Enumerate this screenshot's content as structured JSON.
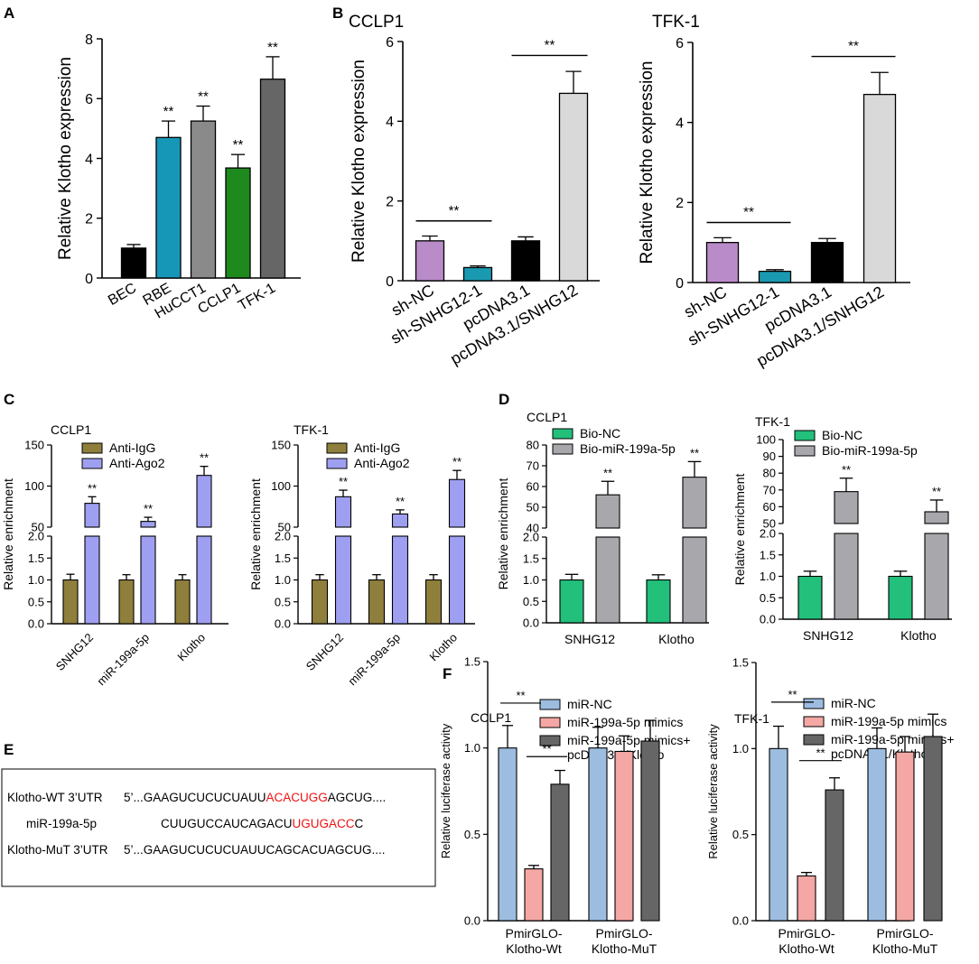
{
  "colors": {
    "black": "#000000",
    "blue_teal": "#1797b8",
    "gray_mid": "#8a8a8a",
    "green": "#1e8a1e",
    "gray_dark": "#666666",
    "purple": "#b98bc9",
    "teal2": "#1a9ab0",
    "light_gray": "#d9d9d9",
    "olive": "#8f7f3c",
    "periwinkle": "#9f9ff2",
    "bio_green": "#22c07a",
    "bio_gray": "#a8a8ac",
    "mirnc_blue": "#9dbde0",
    "mimic_pink": "#f4a7a4",
    "mimic_klotho_gray": "#666666",
    "red_text": "#ee1111"
  },
  "panel_labels": {
    "A": "A",
    "B": "B",
    "C": "C",
    "D": "D",
    "E": "E",
    "F": "F"
  },
  "chart_data": [
    {
      "id": "A",
      "type": "bar",
      "title": "",
      "ylabel": "Relative Klotho expression",
      "ylim": [
        0,
        8
      ],
      "yticks": [
        0,
        2,
        4,
        6,
        8
      ],
      "categories": [
        "BEC",
        "RBE",
        "HuCCT1",
        "CCLP1",
        "TFK-1"
      ],
      "values": [
        1.0,
        4.7,
        5.25,
        3.68,
        6.65
      ],
      "errors": [
        0.12,
        0.55,
        0.5,
        0.45,
        0.75
      ],
      "annotations": [
        "",
        "**",
        "**",
        "**",
        "**"
      ]
    },
    {
      "id": "B1",
      "type": "bar",
      "title": "CCLP1",
      "ylabel": "Relative Klotho expression",
      "ylim": [
        0,
        6
      ],
      "yticks": [
        0,
        2,
        4,
        6
      ],
      "categories": [
        "sh-NC",
        "sh-SNHG12-1",
        "pcDNA3.1",
        "pcDNA3.1/SNHG12"
      ],
      "values": [
        1.0,
        0.33,
        1.0,
        4.7
      ],
      "errors": [
        0.12,
        0.04,
        0.1,
        0.55
      ],
      "significance": [
        {
          "label": "**",
          "from": 0,
          "to": 1,
          "y": 1.5
        },
        {
          "label": "**",
          "from": 2,
          "to": 3,
          "y": 5.65
        }
      ]
    },
    {
      "id": "B2",
      "type": "bar",
      "title": "TFK-1",
      "ylabel": "Relative Klotho expression",
      "ylim": [
        0,
        6
      ],
      "yticks": [
        0,
        2,
        4,
        6
      ],
      "categories": [
        "sh-NC",
        "sh-SNHG12-1",
        "pcDNA3.1",
        "pcDNA3.1/SNHG12"
      ],
      "values": [
        1.0,
        0.28,
        1.0,
        4.7
      ],
      "errors": [
        0.12,
        0.04,
        0.1,
        0.55
      ],
      "significance": [
        {
          "label": "**",
          "from": 0,
          "to": 1,
          "y": 1.5
        },
        {
          "label": "**",
          "from": 2,
          "to": 3,
          "y": 5.65
        }
      ]
    },
    {
      "id": "C1",
      "type": "bar",
      "title": "CCLP1",
      "ylabel": "Relative enrichment",
      "y_break": {
        "lower": [
          0,
          2.0
        ],
        "upper": [
          50,
          150
        ]
      },
      "yticks_lower": [
        "0.0",
        "0.5",
        "1.0",
        "1.5",
        "2.0"
      ],
      "yticks_upper": [
        "50",
        "100",
        "150"
      ],
      "categories": [
        "SNHG12",
        "miR-199a-5p",
        "Klotho"
      ],
      "series": [
        {
          "name": "Anti-IgG",
          "values": [
            1.0,
            1.0,
            1.0
          ],
          "errors": [
            0.13,
            0.12,
            0.12
          ]
        },
        {
          "name": "Anti-Ago2",
          "values": [
            79,
            57,
            113
          ],
          "errors": [
            8,
            5,
            11
          ]
        }
      ],
      "annotations": [
        "**",
        "**",
        "**"
      ]
    },
    {
      "id": "C2",
      "type": "bar",
      "title": "TFK-1",
      "ylabel": "Relative enrichment",
      "y_break": {
        "lower": [
          0,
          2.0
        ],
        "upper": [
          50,
          150
        ]
      },
      "yticks_lower": [
        "0.0",
        "0.5",
        "1.0",
        "1.5",
        "2.0"
      ],
      "yticks_upper": [
        "50",
        "100",
        "150"
      ],
      "categories": [
        "SNHG12",
        "miR-199a-5p",
        "Klotho"
      ],
      "series": [
        {
          "name": "Anti-IgG",
          "values": [
            1.0,
            1.0,
            1.0
          ],
          "errors": [
            0.12,
            0.12,
            0.12
          ]
        },
        {
          "name": "Anti-Ago2",
          "values": [
            87,
            66,
            108
          ],
          "errors": [
            8,
            5,
            11
          ]
        }
      ],
      "annotations": [
        "**",
        "**",
        "**"
      ]
    },
    {
      "id": "D1",
      "type": "bar",
      "title": "CCLP1",
      "ylabel": "Relative enrichment",
      "y_break": {
        "lower": [
          0,
          2.0
        ],
        "upper": [
          40,
          80
        ]
      },
      "yticks_lower": [
        "0.0",
        "0.5",
        "1.0",
        "1.5",
        "2.0"
      ],
      "yticks_upper": [
        "40",
        "50",
        "60",
        "70",
        "80"
      ],
      "categories": [
        "SNHG12",
        "Klotho"
      ],
      "series": [
        {
          "name": "Bio-NC",
          "values": [
            1.0,
            1.0
          ],
          "errors": [
            0.13,
            0.12
          ]
        },
        {
          "name": "Bio-miR-199a-5p",
          "values": [
            56,
            64.5
          ],
          "errors": [
            6.5,
            7.5
          ]
        }
      ],
      "annotations": [
        "**",
        "**"
      ]
    },
    {
      "id": "D2",
      "type": "bar",
      "title": "TFK-1",
      "ylabel": "Relative enrichment",
      "y_break": {
        "lower": [
          0,
          2.0
        ],
        "upper": [
          50,
          100
        ]
      },
      "yticks_lower": [
        "0.0",
        "0.5",
        "1.0",
        "1.5",
        "2.0"
      ],
      "yticks_upper": [
        "50",
        "60",
        "70",
        "80",
        "90",
        "100"
      ],
      "categories": [
        "SNHG12",
        "Klotho"
      ],
      "series": [
        {
          "name": "Bio-NC",
          "values": [
            1.0,
            1.0
          ],
          "errors": [
            0.12,
            0.12
          ]
        },
        {
          "name": "Bio-miR-199a-5p",
          "values": [
            69,
            57
          ],
          "errors": [
            8,
            7
          ]
        }
      ],
      "annotations": [
        "**",
        "**"
      ]
    },
    {
      "id": "F1",
      "type": "bar",
      "title": "CCLP1",
      "ylabel": "Relative luciferase activity",
      "ylim": [
        0,
        1.5
      ],
      "yticks": [
        "0.0",
        "0.5",
        "1.0",
        "1.5"
      ],
      "categories": [
        "PmirGLO-Klotho-Wt",
        "PmirGLO-Klotho-MuT"
      ],
      "category_lines": [
        [
          "PmirGLO-",
          "Klotho-Wt"
        ],
        [
          "PmirGLO-",
          "Klotho-MuT"
        ]
      ],
      "series": [
        {
          "name": "miR-NC",
          "values": [
            1.0,
            1.0
          ],
          "errors": [
            0.13,
            0.12
          ]
        },
        {
          "name": "miR-199a-5p mimics",
          "values": [
            0.3,
            0.98
          ],
          "errors": [
            0.02,
            0.09
          ]
        },
        {
          "name": "miR-199a-5p mimics+ pcDNA3.1/Klotho",
          "values": [
            0.79,
            1.04
          ],
          "errors": [
            0.08,
            0.12
          ]
        }
      ],
      "legend_lines": [
        [
          "miR-NC"
        ],
        [
          "miR-199a-5p mimics"
        ],
        [
          "miR-199a-5p mimics+",
          "pcDNA3.1/Klotho"
        ]
      ],
      "significance": [
        {
          "label": "**",
          "from": [
            0,
            0
          ],
          "to": [
            0,
            1
          ],
          "y": 1.26
        },
        {
          "label": "**",
          "from": [
            0,
            1
          ],
          "to": [
            0,
            2
          ],
          "y": 0.95
        }
      ]
    },
    {
      "id": "F2",
      "type": "bar",
      "title": "TFK-1",
      "ylabel": "Relative luciferase activity",
      "ylim": [
        0,
        1.5
      ],
      "yticks": [
        "0.0",
        "0.5",
        "1.0",
        "1.5"
      ],
      "categories": [
        "PmirGLO-Klotho-Wt",
        "PmirGLO-Klotho-MuT"
      ],
      "category_lines": [
        [
          "PmirGLO-",
          "Klotho-Wt"
        ],
        [
          "PmirGLO-",
          "Klotho-MuT"
        ]
      ],
      "series": [
        {
          "name": "miR-NC",
          "values": [
            1.0,
            1.0
          ],
          "errors": [
            0.13,
            0.12
          ]
        },
        {
          "name": "miR-199a-5p mimics",
          "values": [
            0.26,
            0.98
          ],
          "errors": [
            0.02,
            0.09
          ]
        },
        {
          "name": "miR-199a-5p mimics+ pcDNA3.1/Klotho",
          "values": [
            0.76,
            1.07
          ],
          "errors": [
            0.07,
            0.13
          ]
        }
      ],
      "legend_lines": [
        [
          "miR-NC"
        ],
        [
          "miR-199a-5p mimics"
        ],
        [
          "miR-199a-5p mimics+",
          "pcDNA3.1/Klotho"
        ]
      ],
      "significance": [
        {
          "label": "**",
          "from": [
            0,
            0
          ],
          "to": [
            0,
            1
          ],
          "y": 1.27
        },
        {
          "label": "**",
          "from": [
            0,
            1
          ],
          "to": [
            0,
            2
          ],
          "y": 0.93
        }
      ]
    }
  ],
  "sequence_box": {
    "rows": [
      {
        "label": "Klotho-WT 3’UTR",
        "prefix": "5’...GAAGUCUCUCUAUU",
        "highlight": "ACACUGG",
        "suffix": "AGCUG...."
      },
      {
        "label": "miR-199a-5p",
        "prefix": "CUUGUCCAUCAGACU",
        "highlight": "UGUGACC",
        "suffix": "C"
      },
      {
        "label": "Klotho-MuT 3’UTR",
        "prefix": "5’...GAAGUCUCUCUAUUCAGCACUAGCUG....",
        "highlight": "",
        "suffix": ""
      }
    ]
  }
}
